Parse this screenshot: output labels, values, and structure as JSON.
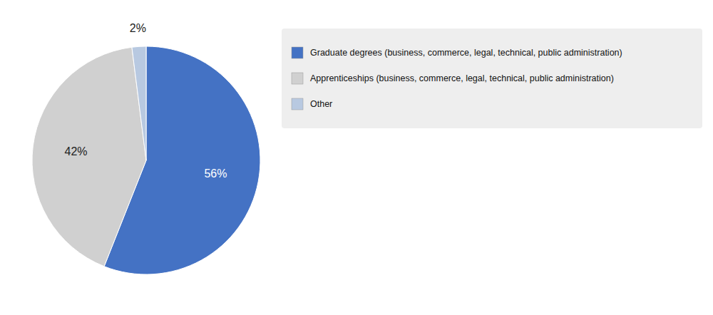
{
  "chart_data": {
    "type": "pie",
    "categories": [
      "Graduate degrees (business, commerce, legal, technical, public administration)",
      "Apprenticeships (business, commerce, legal, technical, public administration)",
      "Other"
    ],
    "values": [
      56,
      42,
      2
    ],
    "value_labels": [
      "56%",
      "42%",
      "2%"
    ],
    "colors": [
      "#4472c4",
      "#d0d0d0",
      "#b8c9e1"
    ],
    "data_labels": true,
    "legend": "right"
  }
}
